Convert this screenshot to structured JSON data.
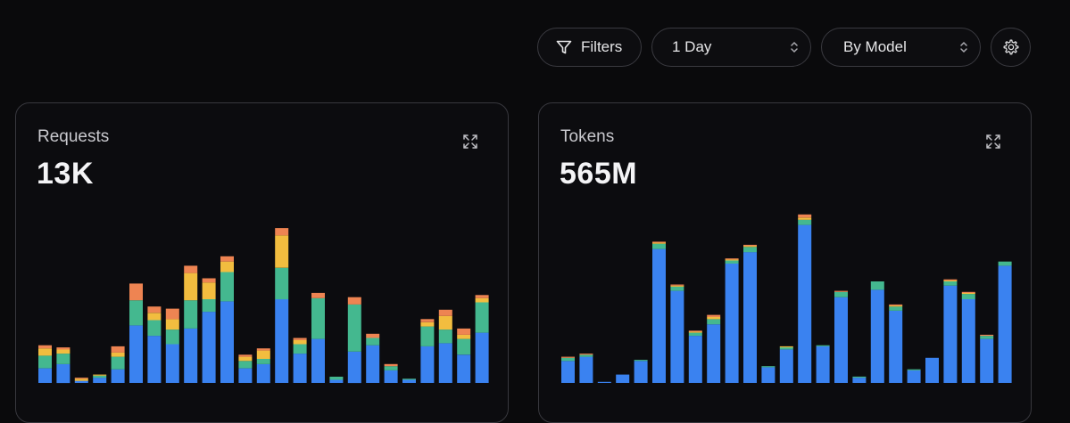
{
  "toolbar": {
    "filters_label": "Filters",
    "time_select": "1 Day",
    "group_select": "By Model"
  },
  "icons": {
    "filter": "filter-icon",
    "chevrons": "chevron-up-down-icon",
    "gear": "gear-icon",
    "expand": "expand-icon"
  },
  "colors": {
    "blue": "#3a82f0",
    "teal": "#44b88f",
    "yellow": "#f2bd3f",
    "orange": "#ee8452"
  },
  "cards": {
    "requests": {
      "title": "Requests",
      "value": "13K"
    },
    "tokens": {
      "title": "Tokens",
      "value": "565M"
    }
  },
  "chart_data": [
    {
      "type": "bar",
      "stacked": true,
      "title": "Requests",
      "series": [
        {
          "color": "#3a82f0",
          "values": [
            14,
            18,
            2,
            5,
            13,
            55,
            45,
            37,
            52,
            68,
            78,
            14,
            18,
            80,
            28,
            42,
            3,
            30,
            36,
            12,
            3,
            35,
            38,
            27,
            48
          ]
        },
        {
          "color": "#44b88f",
          "values": [
            12,
            10,
            0,
            2,
            12,
            24,
            15,
            14,
            27,
            12,
            28,
            7,
            5,
            30,
            9,
            39,
            3,
            45,
            7,
            4,
            1,
            19,
            13,
            15,
            29
          ]
        },
        {
          "color": "#f2bd3f",
          "values": [
            7,
            4,
            2,
            1,
            4,
            0,
            7,
            10,
            26,
            16,
            10,
            4,
            8,
            31,
            4,
            0,
            0,
            0,
            0,
            0,
            0,
            4,
            13,
            4,
            4
          ]
        },
        {
          "color": "#ee8452",
          "values": [
            3,
            2,
            1,
            0,
            6,
            16,
            6,
            10,
            7,
            4,
            5,
            2,
            2,
            7,
            2,
            5,
            0,
            7,
            4,
            2,
            0,
            3,
            6,
            6,
            3
          ]
        }
      ],
      "ylim": [
        0,
        160
      ]
    },
    {
      "type": "bar",
      "stacked": true,
      "title": "Tokens",
      "series": [
        {
          "color": "#3a82f0",
          "values": [
            21,
            25,
            1,
            8,
            21,
            128,
            88,
            45,
            56,
            114,
            125,
            15,
            32,
            151,
            35,
            82,
            5,
            89,
            69,
            12,
            24,
            93,
            80,
            42,
            112
          ]
        },
        {
          "color": "#44b88f",
          "values": [
            3,
            2,
            0,
            0,
            1,
            5,
            4,
            3,
            5,
            3,
            5,
            1,
            2,
            5,
            1,
            5,
            1,
            8,
            4,
            1,
            0,
            4,
            5,
            3,
            4
          ]
        },
        {
          "color": "#f2bd3f",
          "values": [
            0,
            0,
            0,
            0,
            0,
            1,
            1,
            1,
            2,
            1,
            1,
            0,
            1,
            2,
            0,
            0,
            0,
            0,
            1,
            0,
            0,
            1,
            1,
            0,
            0
          ]
        },
        {
          "color": "#ee8452",
          "values": [
            1,
            1,
            0,
            0,
            0,
            1,
            1,
            1,
            2,
            1,
            1,
            0,
            0,
            3,
            0,
            1,
            0,
            0,
            1,
            0,
            0,
            1,
            1,
            1,
            0
          ]
        }
      ],
      "ylim": [
        0,
        160
      ]
    }
  ]
}
